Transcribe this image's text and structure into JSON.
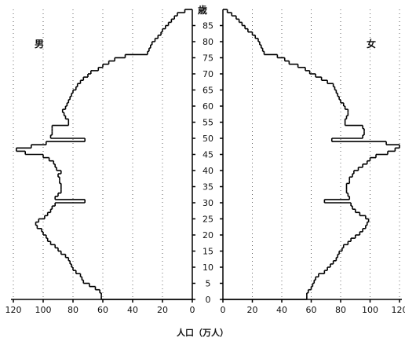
{
  "chart_data": {
    "type": "population-pyramid",
    "title": "",
    "xlabel": "人口（万人）",
    "age_axis_label": "歳",
    "left_panel_label": "男",
    "right_panel_label": "女",
    "x_range": [
      0,
      120
    ],
    "x_ticks_left": [
      120,
      100,
      80,
      60,
      40,
      20,
      0
    ],
    "x_ticks_right": [
      0,
      20,
      40,
      60,
      80,
      100,
      120
    ],
    "age_ticks": [
      0,
      5,
      10,
      15,
      20,
      25,
      30,
      35,
      40,
      45,
      50,
      55,
      60,
      65,
      70,
      75,
      80,
      85
    ],
    "age_range": [
      0,
      89
    ],
    "grid": true,
    "series": [
      {
        "name": "男",
        "ages": [
          0,
          1,
          2,
          3,
          4,
          5,
          6,
          7,
          8,
          9,
          10,
          11,
          12,
          13,
          14,
          15,
          16,
          17,
          18,
          19,
          20,
          21,
          22,
          23,
          24,
          25,
          26,
          27,
          28,
          29,
          30,
          31,
          32,
          33,
          34,
          35,
          36,
          37,
          38,
          39,
          40,
          41,
          42,
          43,
          44,
          45,
          46,
          47,
          48,
          49,
          50,
          51,
          52,
          53,
          54,
          55,
          56,
          57,
          58,
          59,
          60,
          61,
          62,
          63,
          64,
          65,
          66,
          67,
          68,
          69,
          70,
          71,
          72,
          73,
          74,
          75,
          76,
          77,
          78,
          79,
          80,
          81,
          82,
          83,
          84,
          85,
          86,
          87,
          88,
          89
        ],
        "values": [
          61,
          61,
          62,
          65,
          69,
          73,
          74,
          75,
          78,
          80,
          81,
          82,
          83,
          85,
          88,
          90,
          92,
          95,
          97,
          98,
          100,
          101,
          104,
          105,
          103,
          99,
          97,
          95,
          94,
          92,
          72,
          92,
          90,
          88,
          88,
          88,
          89,
          89,
          90,
          88,
          91,
          92,
          93,
          96,
          100,
          112,
          118,
          108,
          98,
          72,
          95,
          94,
          94,
          94,
          83,
          83,
          85,
          86,
          87,
          85,
          84,
          83,
          82,
          81,
          80,
          78,
          77,
          75,
          73,
          70,
          68,
          63,
          60,
          56,
          52,
          45,
          30,
          29,
          28,
          27,
          25,
          23,
          21,
          20,
          18,
          16,
          14,
          12,
          10,
          5
        ]
      },
      {
        "name": "女",
        "ages": [
          0,
          1,
          2,
          3,
          4,
          5,
          6,
          7,
          8,
          9,
          10,
          11,
          12,
          13,
          14,
          15,
          16,
          17,
          18,
          19,
          20,
          21,
          22,
          23,
          24,
          25,
          26,
          27,
          28,
          29,
          30,
          31,
          32,
          33,
          34,
          35,
          36,
          37,
          38,
          39,
          40,
          41,
          42,
          43,
          44,
          45,
          46,
          47,
          48,
          49,
          50,
          51,
          52,
          53,
          54,
          55,
          56,
          57,
          58,
          59,
          60,
          61,
          62,
          63,
          64,
          65,
          66,
          67,
          68,
          69,
          70,
          71,
          72,
          73,
          74,
          75,
          76,
          77,
          78,
          79,
          80,
          81,
          82,
          83,
          84,
          85,
          86,
          87,
          88,
          89
        ],
        "values": [
          57,
          57,
          58,
          60,
          61,
          62,
          63,
          65,
          69,
          71,
          73,
          75,
          77,
          78,
          79,
          81,
          82,
          85,
          87,
          90,
          93,
          95,
          97,
          98,
          99,
          97,
          93,
          90,
          88,
          87,
          69,
          86,
          85,
          84,
          84,
          84,
          86,
          86,
          88,
          89,
          92,
          95,
          98,
          100,
          104,
          112,
          117,
          120,
          111,
          74,
          95,
          96,
          96,
          95,
          83,
          83,
          84,
          85,
          85,
          83,
          82,
          80,
          79,
          78,
          77,
          76,
          75,
          71,
          67,
          63,
          59,
          56,
          51,
          45,
          42,
          37,
          28,
          27,
          26,
          25,
          24,
          22,
          20,
          17,
          15,
          13,
          11,
          9,
          6,
          3
        ]
      }
    ]
  }
}
